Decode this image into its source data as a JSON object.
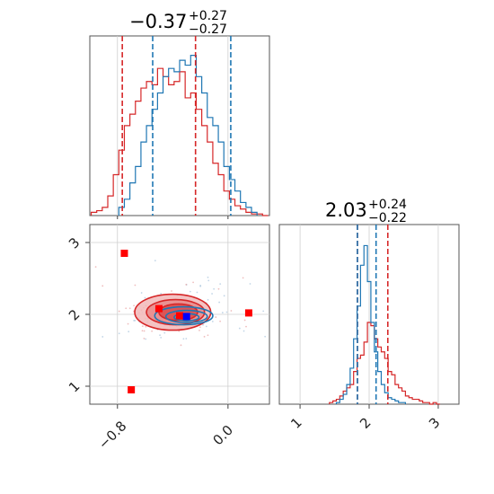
{
  "chart_data": [
    {
      "type": "histogram",
      "panel": "top-left",
      "title": {
        "value": "−0.37",
        "plus": "+0.27",
        "minus": "−0.27"
      },
      "xlim": [
        -1.0,
        0.3
      ],
      "grid": true,
      "quantile_lines": {
        "red": [
          -0.765,
          -0.235
        ],
        "blue": [
          -0.545,
          0.02
        ]
      },
      "series": [
        {
          "color": "#d62728",
          "x": [
            -0.97,
            -0.93,
            -0.89,
            -0.85,
            -0.81,
            -0.77,
            -0.73,
            -0.69,
            -0.65,
            -0.61,
            -0.57,
            -0.53,
            -0.49,
            -0.45,
            -0.41,
            -0.37,
            -0.33,
            -0.29,
            -0.25,
            -0.21,
            -0.17,
            -0.13,
            -0.09,
            -0.05,
            -0.01,
            0.03,
            0.07,
            0.11,
            0.15,
            0.19,
            0.23,
            0.27
          ],
          "values": [
            0.02,
            0.03,
            0.05,
            0.12,
            0.25,
            0.4,
            0.55,
            0.62,
            0.7,
            0.78,
            0.82,
            0.8,
            0.9,
            0.85,
            0.8,
            0.82,
            0.88,
            0.72,
            0.75,
            0.65,
            0.55,
            0.45,
            0.32,
            0.25,
            0.15,
            0.1,
            0.06,
            0.04,
            0.02,
            0.01,
            0.01,
            0.0
          ]
        },
        {
          "color": "#1f77b4",
          "x": [
            -0.77,
            -0.73,
            -0.69,
            -0.65,
            -0.61,
            -0.57,
            -0.53,
            -0.49,
            -0.45,
            -0.41,
            -0.37,
            -0.33,
            -0.29,
            -0.25,
            -0.21,
            -0.17,
            -0.13,
            -0.09,
            -0.05,
            -0.01,
            0.03,
            0.07,
            0.11,
            0.15,
            0.19
          ],
          "values": [
            0.05,
            0.1,
            0.2,
            0.3,
            0.45,
            0.55,
            0.65,
            0.75,
            0.85,
            0.9,
            0.88,
            0.95,
            0.92,
            0.98,
            0.85,
            0.75,
            0.6,
            0.55,
            0.45,
            0.3,
            0.22,
            0.15,
            0.08,
            0.05,
            0.02
          ]
        }
      ]
    },
    {
      "type": "histogram",
      "panel": "bottom-right",
      "title": {
        "value": "2.03",
        "plus": "+0.24",
        "minus": "−0.22"
      },
      "xlim": [
        0.7,
        3.3
      ],
      "xticks": [
        "1",
        "2",
        "3"
      ],
      "grid": true,
      "quantile_lines": {
        "red": [
          1.83,
          2.27
        ],
        "blue": [
          1.83,
          2.1
        ]
      },
      "series": [
        {
          "color": "#d62728",
          "x": [
            1.45,
            1.5,
            1.55,
            1.6,
            1.65,
            1.7,
            1.75,
            1.8,
            1.85,
            1.9,
            1.95,
            2.0,
            2.05,
            2.1,
            2.15,
            2.2,
            2.25,
            2.3,
            2.35,
            2.4,
            2.45,
            2.5,
            2.55,
            2.6,
            2.65,
            2.7,
            2.75,
            2.8,
            2.85,
            2.9,
            2.95,
            3.0
          ],
          "values": [
            0.01,
            0.02,
            0.03,
            0.05,
            0.08,
            0.1,
            0.12,
            0.2,
            0.28,
            0.3,
            0.38,
            0.5,
            0.48,
            0.4,
            0.35,
            0.32,
            0.28,
            0.2,
            0.18,
            0.12,
            0.1,
            0.08,
            0.05,
            0.04,
            0.03,
            0.03,
            0.02,
            0.01,
            0.01,
            0.0,
            0.01,
            0.0
          ]
        },
        {
          "color": "#1f77b4",
          "x": [
            1.55,
            1.6,
            1.65,
            1.7,
            1.75,
            1.8,
            1.85,
            1.9,
            1.95,
            2.0,
            2.05,
            2.1,
            2.15,
            2.2,
            2.25,
            2.3,
            2.35,
            2.4,
            2.45,
            2.5
          ],
          "values": [
            0.01,
            0.03,
            0.06,
            0.12,
            0.22,
            0.4,
            0.6,
            0.85,
            0.97,
            0.75,
            0.5,
            0.32,
            0.2,
            0.12,
            0.07,
            0.04,
            0.03,
            0.02,
            0.01,
            0.01
          ]
        }
      ]
    },
    {
      "type": "contour",
      "panel": "bottom-left",
      "xlim": [
        -1.0,
        0.3
      ],
      "ylim": [
        0.75,
        3.25
      ],
      "xticks": [
        "−0.8",
        "0.0"
      ],
      "yticks": [
        "1",
        "2",
        "3"
      ],
      "grid": true,
      "red_contours": [
        {
          "cx": -0.4,
          "cy": 2.03,
          "rx": 0.55,
          "ry": 0.5
        },
        {
          "cx": -0.38,
          "cy": 2.03,
          "rx": 0.42,
          "ry": 0.35
        },
        {
          "cx": -0.36,
          "cy": 2.03,
          "rx": 0.28,
          "ry": 0.23
        }
      ],
      "blue_contours": [
        {
          "cx": -0.32,
          "cy": 1.98,
          "rx": 0.42,
          "ry": 0.25
        },
        {
          "cx": -0.3,
          "cy": 1.97,
          "rx": 0.3,
          "ry": 0.17
        },
        {
          "cx": -0.3,
          "cy": 1.96,
          "rx": 0.18,
          "ry": 0.1
        }
      ],
      "red_points": [
        [
          -0.75,
          2.85
        ],
        [
          -0.5,
          2.08
        ],
        [
          -0.35,
          1.98
        ],
        [
          0.15,
          2.02
        ],
        [
          -0.7,
          0.95
        ]
      ],
      "blue_point": [
        -0.3,
        1.97
      ]
    }
  ]
}
